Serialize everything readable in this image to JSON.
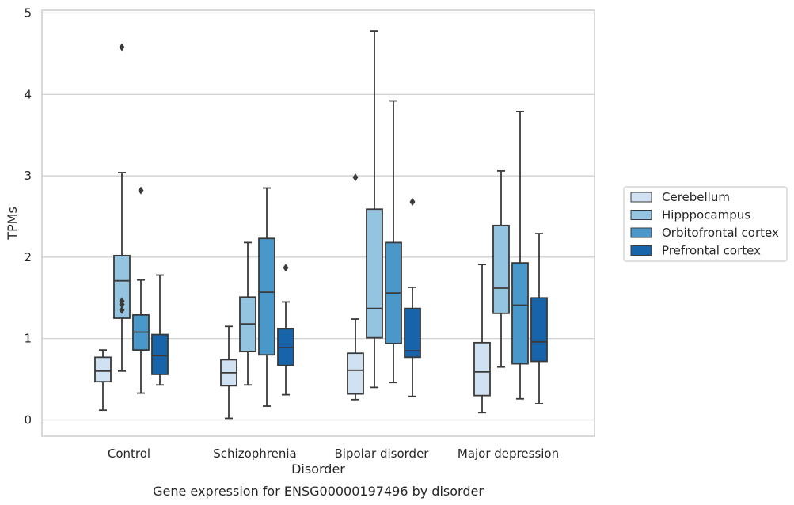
{
  "chart_data": {
    "type": "box",
    "caption": "Gene expression for ENSG00000197496 by disorder",
    "xlabel": "Disorder",
    "ylabel": "TPMs",
    "ylim": [
      -0.2,
      5.02
    ],
    "yticks": [
      0,
      1,
      2,
      3,
      4,
      5
    ],
    "grid": "horizontal",
    "legend_position": "right",
    "categories": [
      "Control",
      "Schizophrenia",
      "Bipolar disorder",
      "Major depression"
    ],
    "series": [
      {
        "name": "Cerebellum",
        "color": "#d0e1f2",
        "boxes": [
          {
            "whisker_low": 0.12,
            "q1": 0.47,
            "median": 0.6,
            "q3": 0.77,
            "whisker_high": 0.86,
            "outliers": []
          },
          {
            "whisker_low": 0.02,
            "q1": 0.42,
            "median": 0.58,
            "q3": 0.74,
            "whisker_high": 1.15,
            "outliers": []
          },
          {
            "whisker_low": 0.25,
            "q1": 0.32,
            "median": 0.61,
            "q3": 0.82,
            "whisker_high": 1.24,
            "outliers": [
              2.98
            ]
          },
          {
            "whisker_low": 0.09,
            "q1": 0.3,
            "median": 0.59,
            "q3": 0.95,
            "whisker_high": 1.91,
            "outliers": []
          }
        ]
      },
      {
        "name": "Hipppocampus",
        "color": "#94c4df",
        "boxes": [
          {
            "whisker_low": 0.6,
            "q1": 1.25,
            "median": 1.71,
            "q3": 2.02,
            "whisker_high": 3.04,
            "outliers": [
              1.35,
              1.42,
              1.46,
              4.58
            ]
          },
          {
            "whisker_low": 0.43,
            "q1": 0.84,
            "median": 1.18,
            "q3": 1.51,
            "whisker_high": 2.18,
            "outliers": []
          },
          {
            "whisker_low": 0.4,
            "q1": 1.01,
            "median": 1.37,
            "q3": 2.59,
            "whisker_high": 4.78,
            "outliers": []
          },
          {
            "whisker_low": 0.65,
            "q1": 1.31,
            "median": 1.62,
            "q3": 2.39,
            "whisker_high": 3.06,
            "outliers": []
          }
        ]
      },
      {
        "name": "Orbitofrontal cortex",
        "color": "#4a98c9",
        "boxes": [
          {
            "whisker_low": 0.33,
            "q1": 0.86,
            "median": 1.08,
            "q3": 1.29,
            "whisker_high": 1.72,
            "outliers": [
              2.82
            ]
          },
          {
            "whisker_low": 0.17,
            "q1": 0.8,
            "median": 1.57,
            "q3": 2.23,
            "whisker_high": 2.85,
            "outliers": []
          },
          {
            "whisker_low": 0.46,
            "q1": 0.94,
            "median": 1.56,
            "q3": 2.18,
            "whisker_high": 3.92,
            "outliers": []
          },
          {
            "whisker_low": 0.26,
            "q1": 0.69,
            "median": 1.41,
            "q3": 1.93,
            "whisker_high": 3.79,
            "outliers": []
          }
        ]
      },
      {
        "name": "Prefrontal cortex",
        "color": "#1764ab",
        "boxes": [
          {
            "whisker_low": 0.43,
            "q1": 0.56,
            "median": 0.79,
            "q3": 1.05,
            "whisker_high": 1.78,
            "outliers": []
          },
          {
            "whisker_low": 0.31,
            "q1": 0.67,
            "median": 0.89,
            "q3": 1.12,
            "whisker_high": 1.45,
            "outliers": [
              1.87
            ]
          },
          {
            "whisker_low": 0.29,
            "q1": 0.77,
            "median": 0.85,
            "q3": 1.37,
            "whisker_high": 1.63,
            "outliers": [
              2.68
            ]
          },
          {
            "whisker_low": 0.2,
            "q1": 0.72,
            "median": 0.96,
            "q3": 1.5,
            "whisker_high": 2.29,
            "outliers": []
          }
        ]
      }
    ]
  }
}
